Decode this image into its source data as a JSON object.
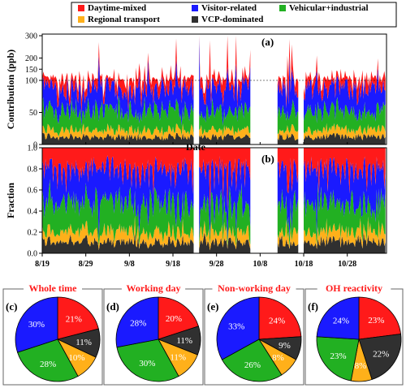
{
  "colors": {
    "daytime_mixed": "#ff1a1a",
    "visitor_related": "#1a1aff",
    "vehicular_industrial": "#22b022",
    "regional_transport": "#ffb01a",
    "vcp_dominated": "#303030",
    "panel_title": "#ff1a1a"
  },
  "legend": [
    {
      "key": "daytime_mixed",
      "label": "Daytime-mixed"
    },
    {
      "key": "visitor_related",
      "label": "Visitor-related"
    },
    {
      "key": "vehicular_industrial",
      "label": "Vehicular+industrial"
    },
    {
      "key": "regional_transport",
      "label": "Regional transport"
    },
    {
      "key": "vcp_dominated",
      "label": "VCP-dominated"
    }
  ],
  "chart_data": [
    {
      "type": "area",
      "panel_label": "(a)",
      "ylabel": "Contribution (ppb)",
      "xlabel": "",
      "stacked": true,
      "y_axis_break": {
        "lower": [
          0,
          100
        ],
        "upper": [
          100,
          300
        ]
      },
      "y_ticks": [
        0,
        50,
        100,
        150,
        200,
        300
      ],
      "y_tick_labels": [
        "0",
        "50",
        "100",
        "150",
        "200",
        "300"
      ],
      "x_range": [
        "2019-08-19",
        "2019-11-06"
      ],
      "gaps": [
        [
          "2019-09-23",
          "2019-09-24"
        ],
        [
          "2019-10-06",
          "2019-10-12"
        ],
        [
          "2019-10-17",
          "2019-10-18"
        ]
      ],
      "series_order": [
        "vcp_dominated",
        "regional_transport",
        "vehicular_industrial",
        "visitor_related",
        "daytime_mixed"
      ],
      "approx_mean_contribution_ppb": {
        "vcp_dominated": 12,
        "regional_transport": 11,
        "vehicular_industrial": 30,
        "visitor_related": 35,
        "daytime_mixed": 25
      },
      "approx_peak_total_ppb": 300
    },
    {
      "type": "area",
      "panel_label": "(b)",
      "ylabel": "Fraction",
      "xlabel": "Date",
      "stacked": true,
      "ylim": [
        0,
        1.0
      ],
      "y_ticks": [
        0,
        0.2,
        0.4,
        0.6,
        0.8,
        1.0
      ],
      "y_tick_labels": [
        "0.0",
        "0.2",
        "0.4",
        "0.6",
        "0.8",
        "1.0"
      ],
      "x_ticks": [
        "2019-08-19",
        "2019-08-29",
        "2019-09-08",
        "2019-09-18",
        "2019-09-28",
        "2019-10-08",
        "2019-10-18",
        "2019-10-28"
      ],
      "x_tick_labels": [
        "8/19",
        "8/29",
        "9/8",
        "9/18",
        "9/28",
        "10/8",
        "10/18",
        "10/28"
      ],
      "x_range": [
        "2019-08-19",
        "2019-11-06"
      ],
      "gaps": [
        [
          "2019-09-23",
          "2019-09-24"
        ],
        [
          "2019-10-06",
          "2019-10-12"
        ],
        [
          "2019-10-17",
          "2019-10-18"
        ]
      ],
      "series_order": [
        "vcp_dominated",
        "regional_transport",
        "vehicular_industrial",
        "visitor_related",
        "daytime_mixed"
      ]
    },
    {
      "type": "pie",
      "panel_label": "(c)",
      "title": "Whole time",
      "slices": [
        {
          "key": "daytime_mixed",
          "value": 21,
          "label": "21%"
        },
        {
          "key": "vcp_dominated",
          "value": 11,
          "label": "11%"
        },
        {
          "key": "regional_transport",
          "value": 10,
          "label": "10%"
        },
        {
          "key": "vehicular_industrial",
          "value": 28,
          "label": "28%"
        },
        {
          "key": "visitor_related",
          "value": 30,
          "label": "30%"
        }
      ]
    },
    {
      "type": "pie",
      "panel_label": "(d)",
      "title": "Working day",
      "slices": [
        {
          "key": "daytime_mixed",
          "value": 20,
          "label": "20%"
        },
        {
          "key": "vcp_dominated",
          "value": 11,
          "label": "11%"
        },
        {
          "key": "regional_transport",
          "value": 11,
          "label": "11%"
        },
        {
          "key": "vehicular_industrial",
          "value": 30,
          "label": "30%"
        },
        {
          "key": "visitor_related",
          "value": 28,
          "label": "28%"
        }
      ]
    },
    {
      "type": "pie",
      "panel_label": "(e)",
      "title": "Non-working day",
      "slices": [
        {
          "key": "daytime_mixed",
          "value": 24,
          "label": "24%"
        },
        {
          "key": "vcp_dominated",
          "value": 9,
          "label": "9%"
        },
        {
          "key": "regional_transport",
          "value": 8,
          "label": "8%"
        },
        {
          "key": "vehicular_industrial",
          "value": 26,
          "label": "26%"
        },
        {
          "key": "visitor_related",
          "value": 33,
          "label": "33%"
        }
      ]
    },
    {
      "type": "pie",
      "panel_label": "(f)",
      "title": "OH reactivity",
      "slices": [
        {
          "key": "daytime_mixed",
          "value": 23,
          "label": "23%"
        },
        {
          "key": "vcp_dominated",
          "value": 22,
          "label": "22%"
        },
        {
          "key": "regional_transport",
          "value": 8,
          "label": "8%"
        },
        {
          "key": "vehicular_industrial",
          "value": 23,
          "label": "23%"
        },
        {
          "key": "visitor_related",
          "value": 24,
          "label": "24%"
        }
      ]
    }
  ]
}
